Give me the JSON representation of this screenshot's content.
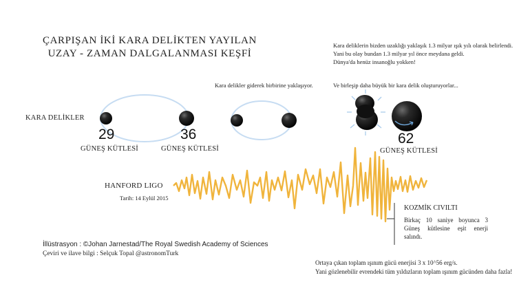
{
  "title": {
    "line1": "ÇARPIŞAN İKİ KARA DELİKTEN YAYILAN",
    "line2": "UZAY - ZAMAN DALGALANMASI KEŞFİ"
  },
  "info_top_right": {
    "line1": "Kara deliklerin bizden uzaklığı yaklaşık 1.3 milyar ışık yılı olarak belirlendi.",
    "line2": "Yani bu olay bundan 1.3 milyar yıl önce meydana geldi.",
    "line3": "Dünya'da henüz insanoğlu yokken!"
  },
  "caption_approach": "Kara delikler giderek birbirine yaklaşıyor.",
  "caption_merge": "Ve birleşip daha büyük bir kara delik oluşturuyorlar...",
  "black_holes_label": "KARA DELİKLER",
  "masses": {
    "bh1": "29",
    "bh2": "36",
    "merged": "62",
    "unit": "GÜNEŞ KÜTLESİ"
  },
  "detector": {
    "name": "HANFORD LIGO",
    "date": "Tarih: 14 Eylül 2015"
  },
  "chirp": {
    "heading": "KOZMİK CIVILTI",
    "line1": "Birkaç 10 saniye boyunca 3",
    "line2": "Güneş kütlesine eşit enerji",
    "line3": "salındı."
  },
  "credits": {
    "illustration": "İllüstrasyon : ©Johan Jarnestad/The Royal Swedish Academy of Sciences",
    "translation": "Çeviri ve ilave bilgi : Selçuk Topal @astronomTurk"
  },
  "energy_note": {
    "line1": "Ortaya çıkan toplam ışınım gücü enerjisi 3 x 10^56 erg/s.",
    "line2": "Yani gözlenebilir evrendeki tüm yıldızların toplam ışınım gücünden daha fazla!"
  },
  "colors": {
    "wave": "#f0b43c",
    "orbit": "#b8d4f0",
    "hole": "#111111"
  }
}
